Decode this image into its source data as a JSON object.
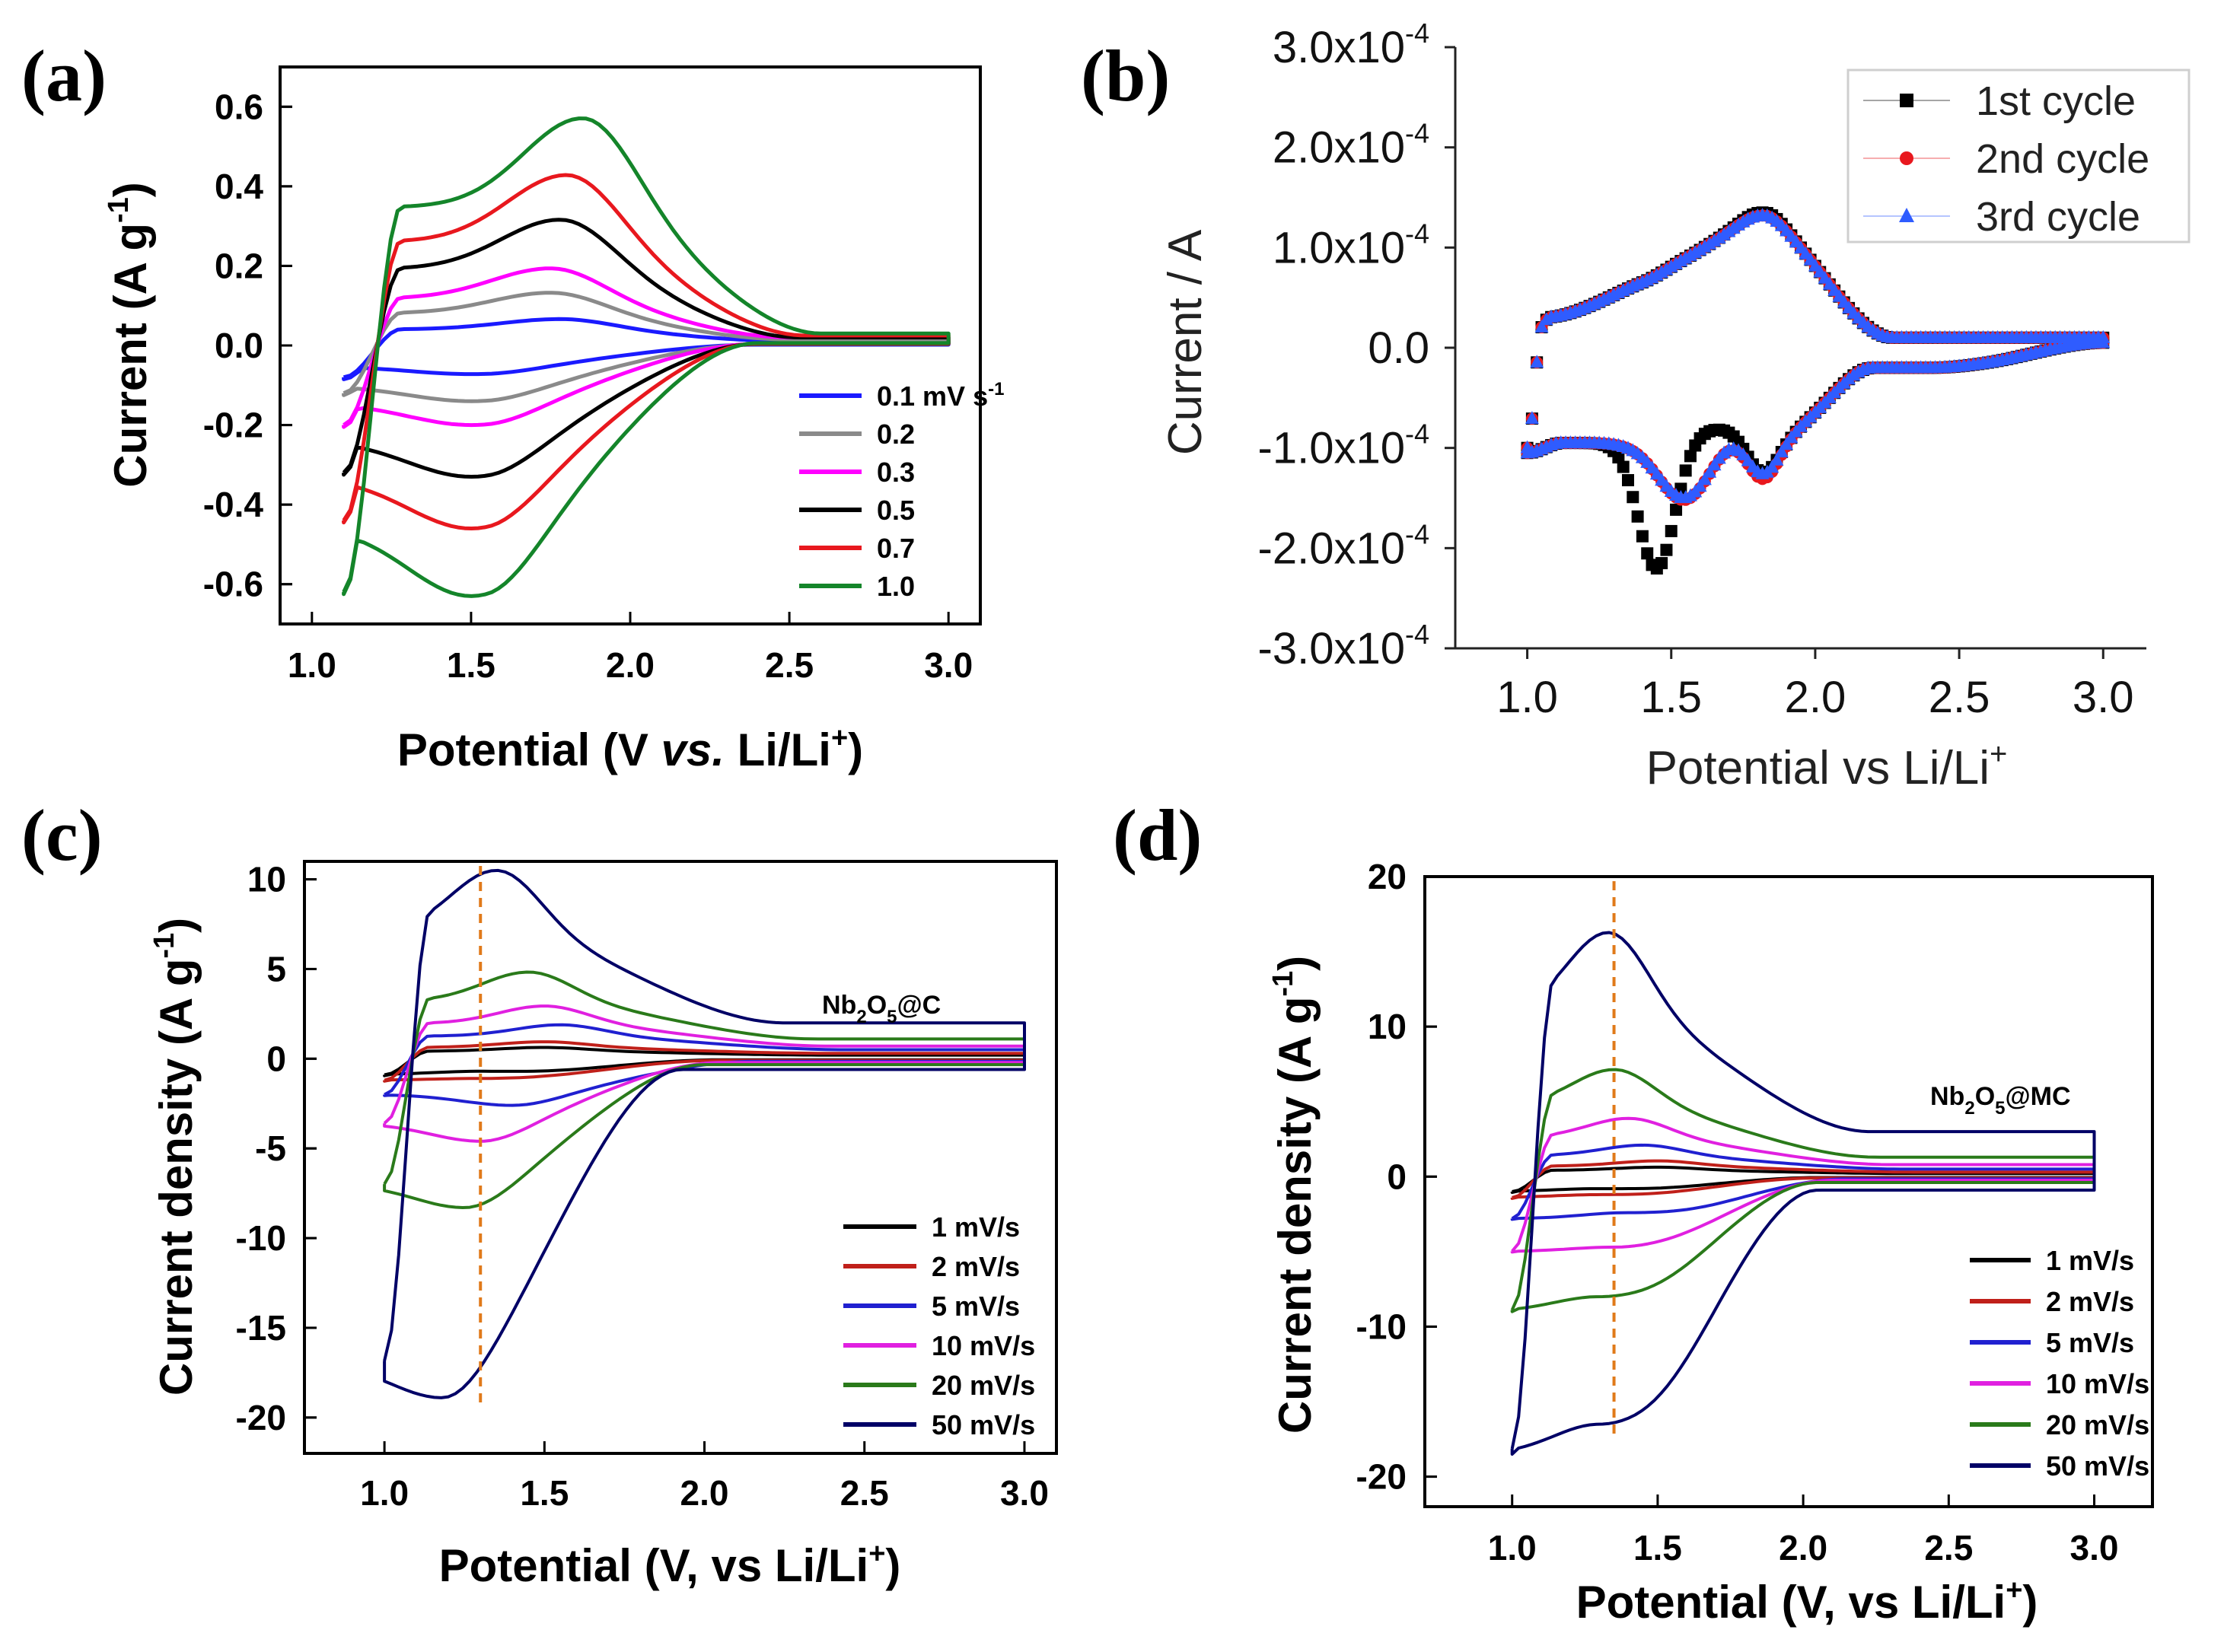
{
  "chart_data": [
    {
      "panel": "(a)",
      "type": "line",
      "xlabel_parts": [
        "Potential (V ",
        "vs.",
        " Li/Li",
        "+",
        ")"
      ],
      "ylabel_parts": [
        "Current (A g",
        "-1",
        ")"
      ],
      "xlim": [
        1.0,
        3.0
      ],
      "ylim": [
        -0.7,
        0.7
      ],
      "xticks": [
        1.0,
        1.5,
        2.0,
        2.5,
        3.0
      ],
      "xtick_labels": [
        "1.0",
        "1.5",
        "2.0",
        "2.5",
        "3.0"
      ],
      "yticks": [
        0.6,
        0.4,
        0.2,
        0.0,
        -0.2,
        -0.4,
        -0.6
      ],
      "ytick_labels": [
        "0.6",
        "0.4",
        "0.2",
        "0.0",
        "-0.2",
        "-0.4",
        "-0.6"
      ],
      "legend_parts": [
        [
          "0.1 mV s",
          "-1"
        ],
        [
          "0.2"
        ],
        [
          "0.3"
        ],
        [
          "0.5"
        ],
        [
          "0.7"
        ],
        [
          "1.0"
        ]
      ],
      "series": [
        {
          "name": "0.1 mV s-1",
          "color": "#1a1aff",
          "x_min": 1.1,
          "x_max": 3.0,
          "peak_v": 1.78,
          "peak_i": 0.065,
          "trough_v": 1.5,
          "trough_i": -0.072,
          "start_i": -0.08,
          "end_i": 0.01
        },
        {
          "name": "0.2",
          "color": "#8a8a8a",
          "x_min": 1.1,
          "x_max": 3.0,
          "peak_v": 1.75,
          "peak_i": 0.13,
          "trough_v": 1.5,
          "trough_i": -0.14,
          "start_i": -0.12,
          "end_i": 0.015
        },
        {
          "name": "0.3",
          "color": "#ff00ff",
          "x_min": 1.1,
          "x_max": 3.0,
          "peak_v": 1.75,
          "peak_i": 0.19,
          "trough_v": 1.5,
          "trough_i": -0.2,
          "start_i": -0.2,
          "end_i": 0.02
        },
        {
          "name": "0.5",
          "color": "#000000",
          "x_min": 1.1,
          "x_max": 3.0,
          "peak_v": 1.78,
          "peak_i": 0.31,
          "trough_v": 1.5,
          "trough_i": -0.33,
          "start_i": -0.32,
          "end_i": 0.02
        },
        {
          "name": "0.7",
          "color": "#e8181e",
          "x_min": 1.1,
          "x_max": 3.0,
          "peak_v": 1.8,
          "peak_i": 0.42,
          "trough_v": 1.5,
          "trough_i": -0.46,
          "start_i": -0.44,
          "end_i": 0.025
        },
        {
          "name": "1.0",
          "color": "#14852a",
          "x_min": 1.1,
          "x_max": 3.0,
          "peak_v": 1.85,
          "peak_i": 0.56,
          "trough_v": 1.5,
          "trough_i": -0.63,
          "start_i": -0.62,
          "end_i": 0.03
        }
      ]
    },
    {
      "panel": "(b)",
      "type": "scatter",
      "xlabel_parts": [
        "Potential vs Li/Li",
        "+",
        ""
      ],
      "ylabel": "Current / A",
      "xlim": [
        0.75,
        3.15
      ],
      "ylim": [
        -0.0003,
        0.0003
      ],
      "xticks": [
        1.0,
        1.5,
        2.0,
        2.5,
        3.0
      ],
      "xtick_labels": [
        "1.0",
        "1.5",
        "2.0",
        "2.5",
        "3.0"
      ],
      "yticks": [
        0.0003,
        0.0002,
        0.0001,
        0.0,
        -0.0001,
        -0.0002,
        -0.0003
      ],
      "ytick_mantissa": [
        "3.0x10",
        "2.0x10",
        "1.0x10",
        "0.0",
        "-1.0x10",
        "-2.0x10",
        "-3.0x10"
      ],
      "ytick_exponent": [
        "-4",
        "-4",
        "-4",
        "",
        "-4",
        "-4",
        "-4"
      ],
      "legend": [
        "1st cycle",
        "2nd cycle",
        "3rd cycle"
      ],
      "series": [
        {
          "name": "1st cycle",
          "color": "#000000",
          "marker": "square",
          "anodic_peak_v": 1.82,
          "anodic_peak_i": 0.000145,
          "cathodic_peaks": [
            [
              1.45,
              -0.00022
            ],
            [
              1.82,
              -0.000125
            ]
          ]
        },
        {
          "name": "2nd cycle",
          "color": "#e8181e",
          "marker": "circle",
          "anodic_peak_v": 1.82,
          "anodic_peak_i": 0.000142,
          "cathodic_peaks": [
            [
              1.55,
              -0.000157
            ],
            [
              1.82,
              -0.00013
            ]
          ]
        },
        {
          "name": "3rd cycle",
          "color": "#2f5cff",
          "marker": "triangle",
          "anodic_peak_v": 1.82,
          "anodic_peak_i": 0.000142,
          "cathodic_peaks": [
            [
              1.55,
              -0.000155
            ],
            [
              1.82,
              -0.000125
            ]
          ]
        }
      ]
    },
    {
      "panel": "(c)",
      "type": "line",
      "sample_parts": [
        "Nb",
        "2",
        "O",
        "5",
        "@C"
      ],
      "xlabel_parts": [
        "Potential (V, vs Li/Li",
        "+",
        ")"
      ],
      "ylabel_parts": [
        "Current density (A g",
        "-1",
        ")"
      ],
      "xlim": [
        0.75,
        3.1
      ],
      "ylim": [
        -22,
        11
      ],
      "xticks": [
        1.0,
        1.5,
        2.0,
        2.5,
        3.0
      ],
      "xtick_labels": [
        "1.0",
        "1.5",
        "2.0",
        "2.5",
        "3.0"
      ],
      "yticks": [
        10,
        5,
        0,
        -5,
        -10,
        -15,
        -20
      ],
      "ytick_labels": [
        "10",
        "5",
        "0",
        "-5",
        "-10",
        "-15",
        "-20"
      ],
      "marker_line_v": 1.3,
      "legend": [
        "1 mV/s",
        "2 mV/s",
        "5 mV/s",
        "10 mV/s",
        "20 mV/s",
        "50 mV/s"
      ],
      "series": [
        {
          "name": "1 mV/s",
          "color": "#000000",
          "x_min": 1.0,
          "x_max": 3.0,
          "peak_v": 1.5,
          "peak_i": 0.6,
          "trough_v": 1.3,
          "trough_i": -0.7,
          "start_i": -0.9,
          "end_i": 0.2
        },
        {
          "name": "2 mV/s",
          "color": "#c0201a",
          "x_min": 1.0,
          "x_max": 3.0,
          "peak_v": 1.5,
          "peak_i": 0.9,
          "trough_v": 1.3,
          "trough_i": -1.1,
          "start_i": -1.2,
          "end_i": 0.3
        },
        {
          "name": "5 mV/s",
          "color": "#2020d0",
          "x_min": 1.0,
          "x_max": 3.0,
          "peak_v": 1.55,
          "peak_i": 1.8,
          "trough_v": 1.4,
          "trough_i": -2.6,
          "start_i": -2.0,
          "end_i": 0.5
        },
        {
          "name": "10 mV/s",
          "color": "#e020e0",
          "x_min": 1.0,
          "x_max": 3.0,
          "peak_v": 1.5,
          "peak_i": 2.8,
          "trough_v": 1.3,
          "trough_i": -4.6,
          "start_i": -3.6,
          "end_i": 0.7
        },
        {
          "name": "20 mV/s",
          "color": "#2a7a1a",
          "x_min": 1.0,
          "x_max": 3.0,
          "peak_v": 1.45,
          "peak_i": 4.6,
          "trough_v": 1.25,
          "trough_i": -8.3,
          "start_i": -7.0,
          "end_i": 1.1
        },
        {
          "name": "50 mV/s",
          "color": "#000066",
          "x_min": 1.0,
          "x_max": 3.0,
          "peak_v": 1.35,
          "peak_i": 10.0,
          "trough_v": 1.18,
          "trough_i": -18.9,
          "start_i": -17.0,
          "end_i": 2.0
        }
      ]
    },
    {
      "panel": "(d)",
      "type": "line",
      "sample_parts": [
        "Nb",
        "2",
        "O",
        "5",
        "@MC"
      ],
      "xlabel_parts": [
        "Potential (V, vs Li/Li",
        "+",
        ")"
      ],
      "ylabel_parts": [
        "Current density (A g",
        "-1",
        ")"
      ],
      "xlim": [
        0.7,
        3.2
      ],
      "ylim": [
        -22,
        20
      ],
      "xticks": [
        1.0,
        1.5,
        2.0,
        2.5,
        3.0
      ],
      "xtick_labels": [
        "1.0",
        "1.5",
        "2.0",
        "2.5",
        "3.0"
      ],
      "yticks": [
        20,
        10,
        0,
        -10,
        -20
      ],
      "ytick_labels": [
        "20",
        "10",
        "0",
        "-10",
        "-20"
      ],
      "marker_line_v": 1.35,
      "legend": [
        "1 mV/s",
        "2 mV/s",
        "5 mV/s",
        "10 mV/s",
        "20 mV/s",
        "50 mV/s"
      ],
      "series": [
        {
          "name": "1 mV/s",
          "color": "#000000",
          "x_min": 1.0,
          "x_max": 3.0,
          "peak_v": 1.5,
          "peak_i": 0.6,
          "trough_v": 1.3,
          "trough_i": -0.8,
          "start_i": -1.0,
          "end_i": 0.2
        },
        {
          "name": "2 mV/s",
          "color": "#c0201a",
          "x_min": 1.0,
          "x_max": 3.0,
          "peak_v": 1.5,
          "peak_i": 1.0,
          "trough_v": 1.3,
          "trough_i": -1.2,
          "start_i": -1.4,
          "end_i": 0.3
        },
        {
          "name": "5 mV/s",
          "color": "#2020d0",
          "x_min": 1.0,
          "x_max": 3.0,
          "peak_v": 1.45,
          "peak_i": 2.0,
          "trough_v": 1.4,
          "trough_i": -2.4,
          "start_i": -2.8,
          "end_i": 0.5
        },
        {
          "name": "10 mV/s",
          "color": "#e020e0",
          "x_min": 1.0,
          "x_max": 3.0,
          "peak_v": 1.4,
          "peak_i": 3.7,
          "trough_v": 1.35,
          "trough_i": -4.7,
          "start_i": -5.0,
          "end_i": 0.8
        },
        {
          "name": "20 mV/s",
          "color": "#2a7a1a",
          "x_min": 1.0,
          "x_max": 3.0,
          "peak_v": 1.35,
          "peak_i": 6.8,
          "trough_v": 1.3,
          "trough_i": -8.0,
          "start_i": -9.0,
          "end_i": 1.3
        },
        {
          "name": "50 mV/s",
          "color": "#000066",
          "x_min": 1.0,
          "x_max": 3.0,
          "peak_v": 1.33,
          "peak_i": 15.5,
          "trough_v": 1.3,
          "trough_i": -16.5,
          "start_i": -18.5,
          "end_i": 3.0
        }
      ]
    }
  ]
}
